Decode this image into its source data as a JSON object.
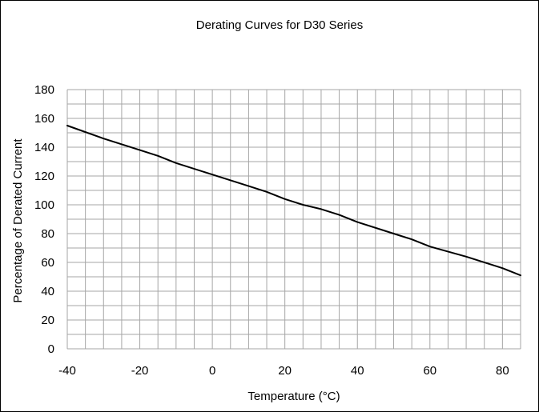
{
  "chart_data": {
    "type": "line",
    "title": "Derating Curves for D30 Series",
    "xlabel": "Temperature (°C)",
    "ylabel": "Percentage of Derated Current",
    "xlim": [
      -40,
      85
    ],
    "ylim": [
      0,
      180
    ],
    "x_ticks": [
      -40,
      -20,
      0,
      20,
      40,
      60,
      80
    ],
    "y_ticks": [
      0,
      20,
      40,
      60,
      80,
      100,
      120,
      140,
      160,
      180
    ],
    "x_grid_step": 5,
    "y_grid_step": 10,
    "grid": true,
    "legend": "none",
    "line_color": "#000000",
    "grid_color": "#a6a6a6",
    "series": [
      {
        "x": [
          -40,
          -30,
          -20,
          -15,
          -10,
          0,
          10,
          15,
          20,
          25,
          30,
          35,
          40,
          50,
          55,
          60,
          70,
          80,
          85
        ],
        "y": [
          155,
          146,
          138,
          134,
          129,
          121,
          113,
          109,
          104,
          100,
          97,
          93,
          88,
          80,
          76,
          71,
          64,
          56,
          51
        ]
      }
    ]
  }
}
